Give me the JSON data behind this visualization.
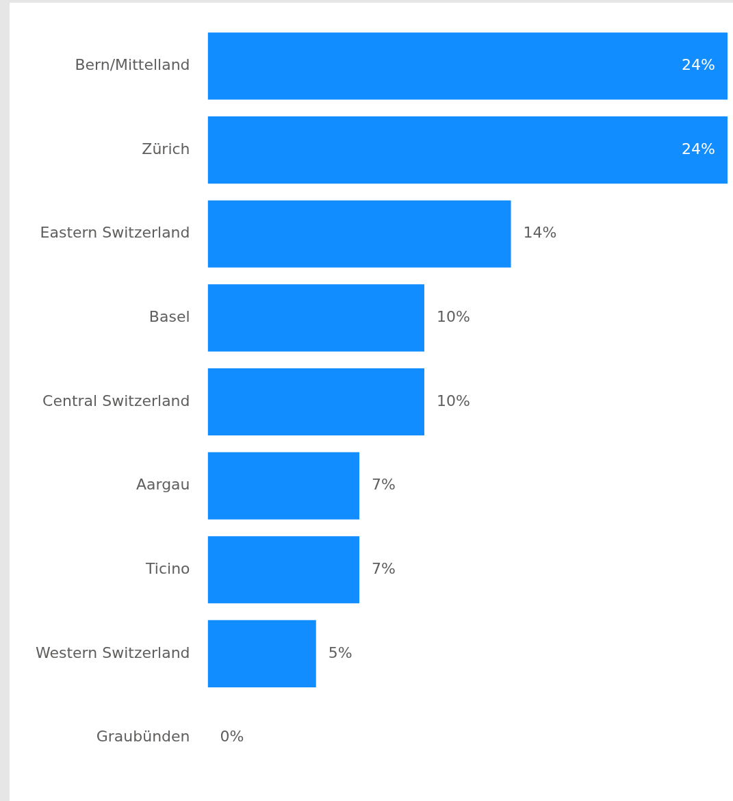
{
  "chart_data": {
    "type": "bar",
    "orientation": "horizontal",
    "categories": [
      "Bern/Mittelland",
      "Zürich",
      "Eastern Switzerland",
      "Basel",
      "Central Switzerland",
      "Aargau",
      "Ticino",
      "Western Switzerland",
      "Graubünden"
    ],
    "values": [
      24,
      24,
      14,
      10,
      10,
      7,
      7,
      5,
      0
    ],
    "value_labels": [
      "24%",
      "24%",
      "14%",
      "10%",
      "10%",
      "7%",
      "7%",
      "5%",
      "0%"
    ],
    "color": "#118dff",
    "legend": false,
    "tick_labels": "y"
  }
}
